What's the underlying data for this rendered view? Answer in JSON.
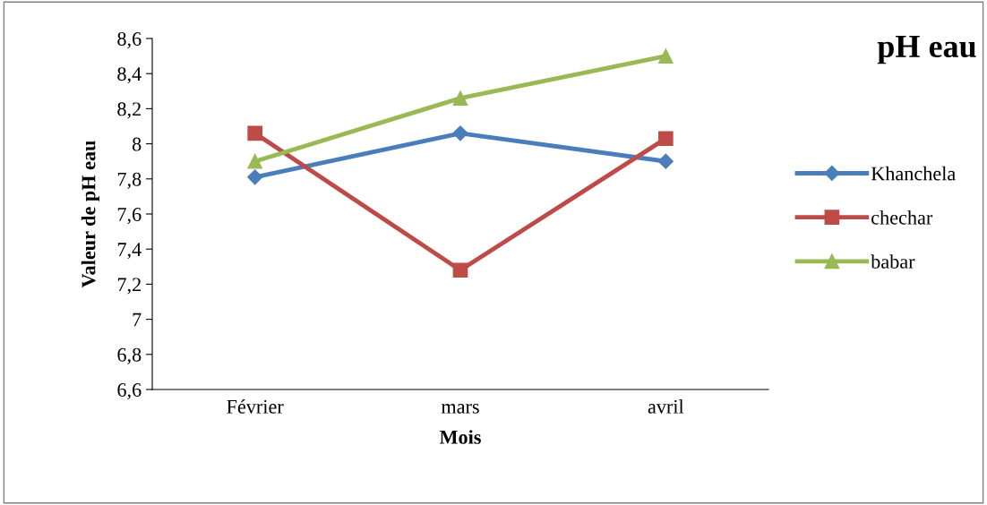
{
  "chart_data": {
    "type": "line",
    "title": "pH eau",
    "xlabel": "Mois",
    "ylabel": "Valeur de pH eau",
    "categories": [
      "Février",
      "mars",
      "avril"
    ],
    "series": [
      {
        "name": "Khanchela",
        "color": "#4a7ebb",
        "marker": "diamond",
        "values": [
          7.81,
          8.06,
          7.9
        ]
      },
      {
        "name": "chechar",
        "color": "#be4b48",
        "marker": "square",
        "values": [
          8.06,
          7.28,
          8.03
        ]
      },
      {
        "name": "babar",
        "color": "#98b954",
        "marker": "triangle",
        "values": [
          7.9,
          8.26,
          8.5
        ]
      }
    ],
    "ylim": [
      6.6,
      8.6
    ],
    "yticks": [
      {
        "value": 6.6,
        "label": "6,6"
      },
      {
        "value": 6.8,
        "label": "6,8"
      },
      {
        "value": 7,
        "label": "7"
      },
      {
        "value": 7.2,
        "label": "7,2"
      },
      {
        "value": 7.4,
        "label": "7,4"
      },
      {
        "value": 7.6,
        "label": "7,6"
      },
      {
        "value": 7.8,
        "label": "7,8"
      },
      {
        "value": 8,
        "label": "8"
      },
      {
        "value": 8.2,
        "label": "8,2"
      },
      {
        "value": 8.4,
        "label": "8,4"
      },
      {
        "value": 8.6,
        "label": "8,6"
      }
    ],
    "grid": false,
    "legend": "right",
    "line_style": "solid"
  }
}
